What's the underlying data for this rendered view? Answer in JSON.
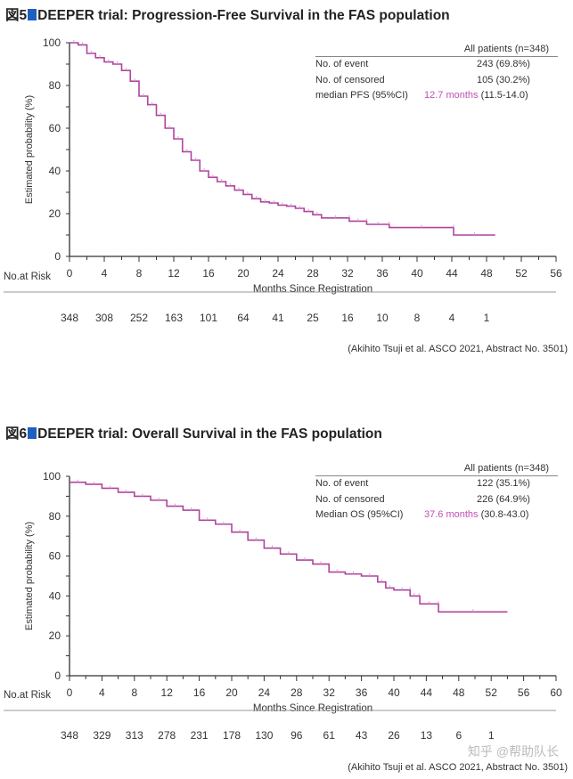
{
  "chart_data": [
    {
      "type": "line",
      "figure_label": "図5",
      "title": "DEEPER trial: Progression-Free Survival in the FAS population",
      "xlabel": "Months Since Registration",
      "ylabel": "Estimated probability (%)",
      "xlim": [
        0,
        56
      ],
      "ylim": [
        0,
        100
      ],
      "xticks": [
        0,
        4,
        8,
        12,
        16,
        20,
        24,
        28,
        32,
        36,
        40,
        44,
        48,
        52,
        56
      ],
      "yticks": [
        0,
        20,
        40,
        60,
        80,
        100
      ],
      "series": [
        {
          "name": "All patients",
          "color": "#b0449e",
          "x": [
            0,
            1,
            2,
            3,
            4,
            5,
            6,
            7,
            8,
            9,
            10,
            11,
            12,
            13,
            14,
            15,
            16,
            17,
            18,
            19,
            20,
            21,
            22,
            23,
            24,
            25,
            26,
            27,
            28,
            29,
            32.2,
            32.2,
            34.2,
            34.2,
            36.8,
            36.8,
            44.2,
            44.2,
            49
          ],
          "y": [
            100,
            99,
            95,
            93,
            91,
            90,
            87,
            82,
            75,
            71,
            66,
            60,
            55,
            49,
            45,
            40,
            37,
            35,
            33,
            31,
            29,
            27,
            25.5,
            25,
            24,
            23.5,
            22.5,
            21,
            19.5,
            18,
            18,
            16.5,
            16.5,
            15,
            15,
            13.5,
            13.5,
            10,
            10
          ]
        }
      ],
      "legend_table": {
        "header": "All patients (n=348)",
        "rows": [
          {
            "label": "No. of event",
            "value": "243 (69.8%)"
          },
          {
            "label": "No. of censored",
            "value": "105 (30.2%)"
          },
          {
            "label": "median PFS (95%CI)",
            "value_highlight": "12.7 months",
            "value": "(11.5-14.0)"
          }
        ]
      },
      "risk_label": "No.at Risk",
      "risk_x": [
        0,
        4,
        8,
        12,
        16,
        20,
        24,
        28,
        32,
        36,
        40,
        44,
        48
      ],
      "risk": [
        "348",
        "308",
        "252",
        "163",
        "101",
        "64",
        "41",
        "25",
        "16",
        "10",
        "8",
        "4",
        "1"
      ],
      "citation": "(Akihito Tsuji et al. ASCO 2021, Abstract No. 3501)"
    },
    {
      "type": "line",
      "figure_label": "図6",
      "title": "DEEPER trial: Overall Survival in the FAS population",
      "xlabel": "Months Since Registration",
      "ylabel": "Estimated probability (%)",
      "xlim": [
        0,
        60
      ],
      "ylim": [
        0,
        100
      ],
      "xticks": [
        0,
        4,
        8,
        12,
        16,
        20,
        24,
        28,
        32,
        36,
        40,
        44,
        48,
        52,
        56,
        60
      ],
      "yticks": [
        0,
        20,
        40,
        60,
        80,
        100
      ],
      "series": [
        {
          "name": "All patients",
          "color": "#b0449e",
          "x": [
            0,
            2,
            4,
            6,
            8,
            10,
            12,
            14,
            16,
            18,
            20,
            22,
            24,
            26,
            28,
            30,
            32,
            34,
            36,
            38,
            39,
            40,
            42,
            42,
            43,
            43.2,
            45.5,
            45.5,
            54
          ],
          "y": [
            97,
            96,
            94,
            92,
            90,
            88,
            85,
            83,
            78,
            76,
            72,
            68,
            64,
            61,
            58,
            56,
            52,
            51,
            50,
            47,
            44,
            43,
            43,
            40,
            40,
            36,
            36,
            32,
            32
          ]
        }
      ],
      "legend_table": {
        "header": "All patients (n=348)",
        "rows": [
          {
            "label": "No. of event",
            "value": "122 (35.1%)"
          },
          {
            "label": "No. of censored",
            "value": "226 (64.9%)"
          },
          {
            "label": "Median OS (95%CI)",
            "value_highlight": "37.6 months",
            "value": "(30.8-43.0)"
          }
        ]
      },
      "risk_label": "No.at Risk",
      "risk_x": [
        0,
        4,
        8,
        12,
        16,
        20,
        24,
        28,
        32,
        36,
        40,
        44,
        48,
        52
      ],
      "risk": [
        "348",
        "329",
        "313",
        "278",
        "231",
        "178",
        "130",
        "96",
        "61",
        "43",
        "26",
        "13",
        "6",
        "1"
      ],
      "citation": "(Akihito Tsuji et al. ASCO 2021, Abstract No. 3501)"
    }
  ],
  "watermark": "知乎 @帮助队长"
}
